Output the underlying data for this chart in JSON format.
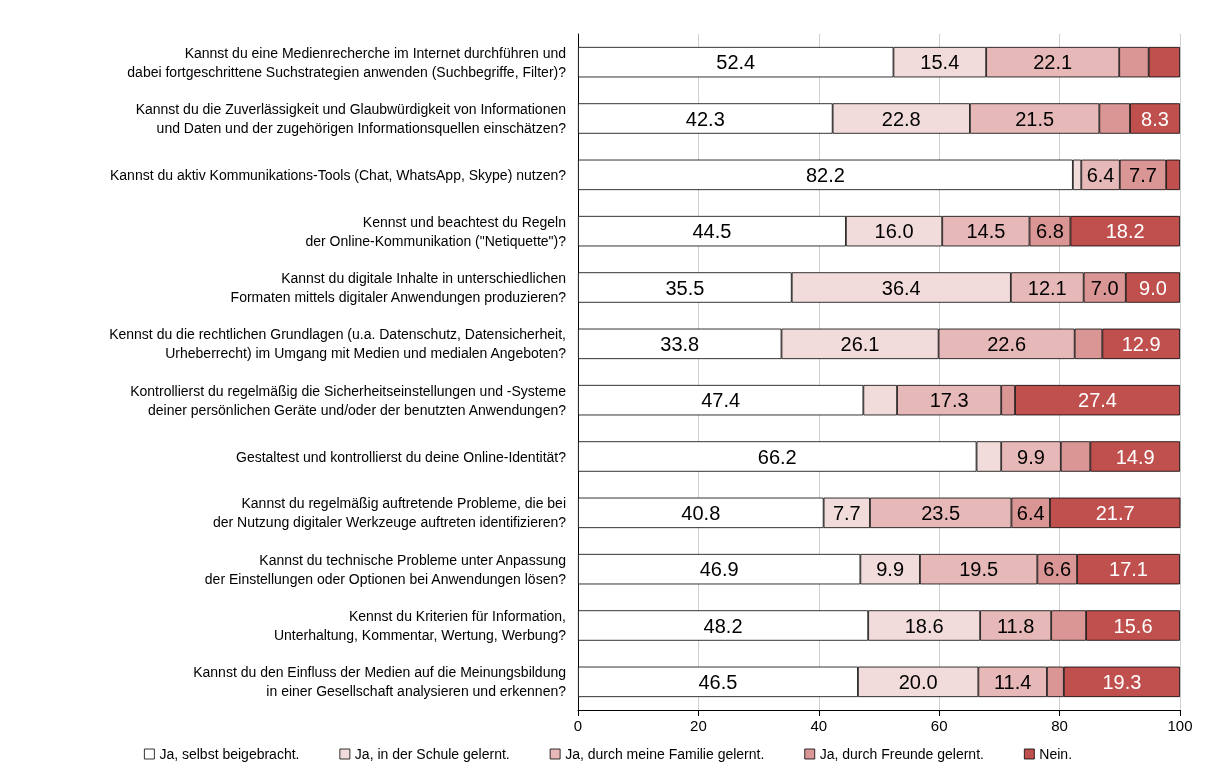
{
  "chart_data": {
    "type": "bar",
    "orientation": "horizontal",
    "stacked": true,
    "categories": [
      "Kannst du eine Medienrecherche im Internet durchführen und\ndabei fortgeschrittene Suchstrategien anwenden (Suchbegriffe, Filter)?",
      "Kannst du die Zuverlässigkeit und Glaubwürdigkeit von Informationen\nund Daten und der zugehörigen Informationsquellen einschätzen?",
      "Kannst du aktiv Kommunikations-Tools (Chat, WhatsApp, Skype) nutzen?",
      "Kennst und beachtest du Regeln\nder Online-Kommunikation (\"Netiquette\")?",
      "Kannst du digitale Inhalte in unterschiedlichen\nFormaten mittels digitaler Anwendungen produzieren?",
      "Kennst du die rechtlichen Grundlagen (u.a. Datenschutz, Datensicherheit,\nUrheberrecht) im Umgang mit Medien und medialen Angeboten?",
      "Kontrollierst du regelmäßig die Sicherheitseinstellungen und -Systeme\ndeiner persönlichen Geräte und/oder der benutzten Anwendungen?",
      "Gestaltest und kontrollierst du deine Online-Identität?",
      "Kannst du regelmäßig auftretende Probleme, die bei\nder Nutzung digitaler Werkzeuge auftreten identifizieren?",
      "Kannst du technische Probleme unter Anpassung\nder Einstellungen oder Optionen bei Anwendungen lösen?",
      "Kennst du Kriterien für Information,\nUnterhaltung, Kommentar, Wertung, Werbung?",
      "Kannst du den Einfluss der Medien auf die Meinungsbildung\nin einer Gesellschaft analysieren und erkennen?"
    ],
    "series": [
      {
        "name": "Ja, selbst beigebracht.",
        "color": "#ffffff",
        "values": [
          52.4,
          42.3,
          82.2,
          44.5,
          35.5,
          33.8,
          47.4,
          66.2,
          40.8,
          46.9,
          48.2,
          46.5
        ],
        "value_labels": [
          "52.4",
          "42.3",
          "82.2",
          "44.5",
          "35.5",
          "33.8",
          "47.4",
          "66.2",
          "40.8",
          "46.9",
          "48.2",
          "46.5"
        ]
      },
      {
        "name": "Ja, in der Schule gelernt.",
        "color": "#f2dcdb",
        "values": [
          15.4,
          22.8,
          1.4,
          16.0,
          36.4,
          26.1,
          5.6,
          4.1,
          7.7,
          9.9,
          18.6,
          20.0
        ],
        "value_labels": [
          "15.4",
          "22.8",
          null,
          "16.0",
          "36.4",
          "26.1",
          null,
          null,
          "7.7",
          "9.9",
          "18.6",
          "20.0"
        ]
      },
      {
        "name": "Ja, durch meine Familie gelernt.",
        "color": "#e6b9b8",
        "values": [
          22.1,
          21.5,
          6.4,
          14.5,
          12.1,
          22.6,
          17.3,
          9.9,
          23.5,
          19.5,
          11.8,
          11.4
        ],
        "value_labels": [
          "22.1",
          "21.5",
          "6.4",
          "14.5",
          "12.1",
          "22.6",
          "17.3",
          "9.9",
          "23.5",
          "19.5",
          "11.8",
          "11.4"
        ]
      },
      {
        "name": "Ja, durch Freunde gelernt.",
        "color": "#d99694",
        "values": [
          4.9,
          5.1,
          7.7,
          6.8,
          7.0,
          4.6,
          2.3,
          4.9,
          6.4,
          6.6,
          5.8,
          2.8
        ],
        "value_labels": [
          null,
          null,
          "7.7",
          "6.8",
          "7.0",
          null,
          null,
          null,
          "6.4",
          "6.6",
          null,
          null
        ]
      },
      {
        "name": "Nein.",
        "color": "#c0504d",
        "values": [
          5.2,
          8.3,
          2.3,
          18.2,
          9.0,
          12.9,
          27.4,
          14.9,
          21.7,
          17.1,
          15.6,
          19.3
        ],
        "value_labels": [
          null,
          "8.3",
          null,
          "18.2",
          "9.0",
          "12.9",
          "27.4",
          "14.9",
          "21.7",
          "17.1",
          "15.6",
          "19.3"
        ]
      }
    ],
    "xlim": [
      0,
      100
    ],
    "xticks": [
      0,
      20,
      40,
      60,
      80,
      100
    ],
    "grid": "x",
    "legend": "bottom"
  }
}
